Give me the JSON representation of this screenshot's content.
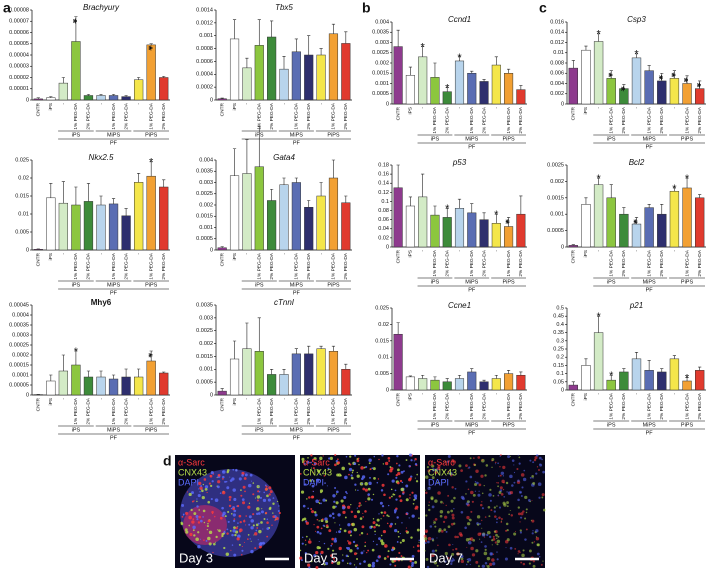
{
  "panels": [
    "a",
    "b",
    "c",
    "d"
  ],
  "micrographs": [
    {
      "stains": [
        "α-Sarc",
        "CNX43",
        "DAPI"
      ],
      "day": "Day 3"
    },
    {
      "stains": [
        "α-Sarc",
        "CNX43",
        "DAPI"
      ],
      "day": "Day 5"
    },
    {
      "stains": [
        "α-Sarc",
        "CNX43",
        "DAPI"
      ],
      "day": "Day 7"
    }
  ],
  "chart_data": [
    {
      "type": "bar",
      "title": "Brachyury",
      "categories": [
        "CNTR",
        "iPS",
        "-",
        "1% PEG-DA",
        "2% PEG-DA",
        "-",
        "1% PEG-DA",
        "2% PEG-DA",
        "-",
        "1% PEG-DA",
        "2% PEG-DA"
      ],
      "groups": [
        "iPS",
        "MiPS",
        "PiPS"
      ],
      "group_title": "PF",
      "values": [
        1e-06,
        2e-06,
        1.5e-05,
        5.2e-05,
        4e-06,
        4e-06,
        4e-06,
        3e-06,
        1.8e-05,
        4.9e-05,
        2e-05
      ],
      "errors": [
        1e-06,
        1e-06,
        5e-06,
        2.2e-05,
        1e-06,
        1e-06,
        1e-06,
        1e-06,
        2e-06,
        1e-06,
        1e-06
      ],
      "stars": [
        null,
        null,
        null,
        "**",
        null,
        null,
        null,
        null,
        null,
        "**",
        null
      ],
      "colors": [
        "#8e3a8e",
        "#ffffff",
        "#d3ebc6",
        "#8cc63f",
        "#3d8b3a",
        "#b8d4ec",
        "#5a6db3",
        "#2e2f6e",
        "#f4e64a",
        "#f2a033",
        "#e03a2e"
      ],
      "ylim": [
        0,
        8e-05
      ],
      "yticks": [
        0,
        1e-05,
        2e-05,
        3e-05,
        4e-05,
        5e-05,
        6e-05,
        7e-05,
        8e-05
      ]
    },
    {
      "type": "bar",
      "title": "Tbx5",
      "categories": [
        "CNTR",
        "iPS",
        "-",
        "1% PEG-DA",
        "2% PEG-DA",
        "-",
        "1% PEG-DA",
        "2% PEG-DA",
        "-",
        "1% PEG-DA",
        "2% PEG-DA"
      ],
      "groups": [
        "iPS",
        "MiPS",
        "PiPS"
      ],
      "group_title": "PF",
      "values": [
        2e-05,
        0.00095,
        0.0005,
        0.00085,
        0.00098,
        0.00048,
        0.00075,
        0.0007,
        0.0007,
        0.00103,
        0.00088
      ],
      "errors": [
        1e-05,
        0.0003,
        0.00015,
        0.0004,
        0.00025,
        0.0002,
        0.0002,
        0.0003,
        0.0001,
        0.00015,
        0.00018
      ],
      "stars": [
        null,
        null,
        null,
        null,
        null,
        null,
        null,
        null,
        null,
        null,
        null
      ],
      "colors": [
        "#8e3a8e",
        "#ffffff",
        "#d3ebc6",
        "#8cc63f",
        "#3d8b3a",
        "#b8d4ec",
        "#5a6db3",
        "#2e2f6e",
        "#f4e64a",
        "#f2a033",
        "#e03a2e"
      ],
      "ylim": [
        0,
        0.0014
      ],
      "yticks": [
        0,
        0.0002,
        0.0004,
        0.0006,
        0.0008,
        0.001,
        0.0012,
        0.0014
      ]
    },
    {
      "type": "bar",
      "title": "Nkx2.5",
      "categories": [
        "CNTR",
        "iPS",
        "-",
        "1% PEG-DA",
        "2% PEG-DA",
        "-",
        "1% PEG-DA",
        "2% PEG-DA",
        "-",
        "1% PEG-DA",
        "2% PEG-DA"
      ],
      "groups": [
        "iPS",
        "MiPS",
        "PiPS"
      ],
      "group_title": "PF",
      "values": [
        0.0002,
        0.0145,
        0.013,
        0.0125,
        0.0135,
        0.0125,
        0.0128,
        0.0095,
        0.0188,
        0.0205,
        0.0175
      ],
      "errors": [
        0.0001,
        0.004,
        0.006,
        0.005,
        0.005,
        0.0025,
        0.0015,
        0.002,
        0.0025,
        0.004,
        0.002
      ],
      "stars": [
        null,
        null,
        null,
        null,
        null,
        null,
        null,
        null,
        null,
        "*",
        null
      ],
      "colors": [
        "#8e3a8e",
        "#ffffff",
        "#d3ebc6",
        "#8cc63f",
        "#3d8b3a",
        "#b8d4ec",
        "#5a6db3",
        "#2e2f6e",
        "#f4e64a",
        "#f2a033",
        "#e03a2e"
      ],
      "ylim": [
        0,
        0.025
      ],
      "yticks": [
        0,
        0.005,
        0.01,
        0.015,
        0.02,
        0.025
      ]
    },
    {
      "type": "bar",
      "title": "Gata4",
      "categories": [
        "CNTR",
        "iPS",
        "-",
        "1% PEG-DA",
        "2% PEG-DA",
        "-",
        "1% PEG-DA",
        "2% PEG-DA",
        "-",
        "1% PEG-DA",
        "2% PEG-DA"
      ],
      "groups": [
        "iPS",
        "MiPS",
        "PiPS"
      ],
      "group_title": "PF",
      "values": [
        0.0001,
        0.0033,
        0.0034,
        0.0037,
        0.0022,
        0.0029,
        0.003,
        0.0019,
        0.0024,
        0.0032,
        0.0021
      ],
      "errors": [
        5e-05,
        0.0012,
        0.0015,
        0.0018,
        0.0005,
        0.0003,
        0.0002,
        0.0003,
        0.0006,
        0.0008,
        0.0003
      ],
      "stars": [
        null,
        null,
        null,
        null,
        null,
        null,
        null,
        null,
        null,
        null,
        null
      ],
      "colors": [
        "#8e3a8e",
        "#ffffff",
        "#d3ebc6",
        "#8cc63f",
        "#3d8b3a",
        "#b8d4ec",
        "#5a6db3",
        "#2e2f6e",
        "#f4e64a",
        "#f2a033",
        "#e03a2e"
      ],
      "ylim": [
        0,
        0.004
      ],
      "yticks": [
        0,
        0.0005,
        0.001,
        0.0015,
        0.002,
        0.0025,
        0.003,
        0.0035,
        0.004
      ]
    },
    {
      "type": "bar",
      "title": "Mhy6",
      "title_weight": "bold",
      "categories": [
        "CNTR",
        "iPS",
        "-",
        "1% PEG-DA",
        "2% PEG-DA",
        "-",
        "1% PEG-DA",
        "2% PEG-DA",
        "-",
        "1% PEG-DA",
        "2% PEG-DA"
      ],
      "groups": [
        "iPS",
        "MiPS",
        "PiPS"
      ],
      "group_title": "PF",
      "values": [
        2e-06,
        7e-05,
        0.00012,
        0.00015,
        9e-05,
        9e-05,
        8e-05,
        9e-05,
        9e-05,
        0.00017,
        0.00011
      ],
      "errors": [
        1e-06,
        3e-05,
        8e-05,
        7e-05,
        3e-05,
        3e-05,
        2e-05,
        4e-05,
        4e-05,
        5e-05,
        5e-06
      ],
      "stars": [
        null,
        null,
        null,
        "*",
        null,
        null,
        null,
        null,
        null,
        "**",
        null
      ],
      "colors": [
        "#8e3a8e",
        "#ffffff",
        "#d3ebc6",
        "#8cc63f",
        "#3d8b3a",
        "#b8d4ec",
        "#5a6db3",
        "#2e2f6e",
        "#f4e64a",
        "#f2a033",
        "#e03a2e"
      ],
      "ylim": [
        0,
        0.00045
      ],
      "yticks": [
        0,
        5e-05,
        0.0001,
        0.00015,
        0.0002,
        0.00025,
        0.0003,
        0.00035,
        0.0004,
        0.00045
      ]
    },
    {
      "type": "bar",
      "title": "cTnnI",
      "categories": [
        "CNTR",
        "iPS",
        "-",
        "1% PEG-DA",
        "2% PEG-DA",
        "-",
        "1% PEG-DA",
        "2% PEG-DA",
        "-",
        "1% PEG-DA",
        "2% PEG-DA"
      ],
      "groups": [
        "iPS",
        "MiPS",
        "PiPS"
      ],
      "group_title": "PF",
      "values": [
        0.00015,
        0.0014,
        0.0018,
        0.0017,
        0.0008,
        0.0008,
        0.0016,
        0.0016,
        0.0018,
        0.0017,
        0.001
      ],
      "errors": [
        0.0001,
        0.0007,
        0.001,
        0.0013,
        0.0002,
        0.0002,
        0.0002,
        0.0003,
        0.0001,
        0.0002,
        0.0002
      ],
      "stars": [
        null,
        null,
        null,
        null,
        null,
        null,
        null,
        null,
        null,
        null,
        null
      ],
      "colors": [
        "#8e3a8e",
        "#ffffff",
        "#d3ebc6",
        "#8cc63f",
        "#3d8b3a",
        "#b8d4ec",
        "#5a6db3",
        "#2e2f6e",
        "#f4e64a",
        "#f2a033",
        "#e03a2e"
      ],
      "ylim": [
        0,
        0.0035
      ],
      "yticks": [
        0,
        0.0005,
        0.001,
        0.0015,
        0.002,
        0.0025,
        0.003,
        0.0035
      ]
    },
    {
      "type": "bar",
      "title": "Ccnd1",
      "categories": [
        "CNTR",
        "iPS",
        "-",
        "1% PEG-DA",
        "2% PEG-DA",
        "-",
        "1% PEG-DA",
        "2% PEG-DA",
        "-",
        "1% PEG-DA",
        "2% PEG-DA"
      ],
      "groups": [
        "iPS",
        "MiPS",
        "PiPS"
      ],
      "group_title": "PF",
      "values": [
        0.0028,
        0.0014,
        0.0023,
        0.0013,
        0.0006,
        0.0021,
        0.0015,
        0.0011,
        0.0019,
        0.0015,
        0.0007
      ],
      "errors": [
        0.0008,
        0.0004,
        0.0005,
        0.0007,
        0.0002,
        0.0002,
        0.0001,
        0.0001,
        0.0004,
        0.0002,
        0.0002
      ],
      "stars": [
        null,
        null,
        "*",
        null,
        "*",
        "*",
        null,
        null,
        null,
        null,
        null
      ],
      "colors": [
        "#8e3a8e",
        "#ffffff",
        "#d3ebc6",
        "#8cc63f",
        "#3d8b3a",
        "#b8d4ec",
        "#5a6db3",
        "#2e2f6e",
        "#f4e64a",
        "#f2a033",
        "#e03a2e"
      ],
      "ylim": [
        0,
        0.004
      ],
      "yticks": [
        0,
        0.0005,
        0.001,
        0.0015,
        0.002,
        0.0025,
        0.003,
        0.0035,
        0.004
      ]
    },
    {
      "type": "bar",
      "title": "p53",
      "categories": [
        "CNTR",
        "iPS",
        "-",
        "1% PEG-DA",
        "2% PEG-DA",
        "-",
        "1% PEG-DA",
        "2% PEG-DA",
        "-",
        "1% PEG-DA",
        "2% PEG-DA"
      ],
      "groups": [
        "iPS",
        "MiPS",
        "PiPS"
      ],
      "group_title": "PF",
      "values": [
        0.13,
        0.09,
        0.11,
        0.07,
        0.065,
        0.085,
        0.075,
        0.06,
        0.052,
        0.045,
        0.072
      ],
      "errors": [
        0.05,
        0.02,
        0.05,
        0.02,
        0.02,
        0.02,
        0.02,
        0.015,
        0.02,
        0.02,
        0.04
      ],
      "stars": [
        null,
        null,
        null,
        null,
        "*",
        null,
        null,
        null,
        "*",
        "**",
        null
      ],
      "colors": [
        "#8e3a8e",
        "#ffffff",
        "#d3ebc6",
        "#8cc63f",
        "#3d8b3a",
        "#b8d4ec",
        "#5a6db3",
        "#2e2f6e",
        "#f4e64a",
        "#f2a033",
        "#e03a2e"
      ],
      "ylim": [
        0,
        0.18
      ],
      "yticks": [
        0,
        0.02,
        0.04,
        0.06,
        0.08,
        0.1,
        0.12,
        0.14,
        0.16,
        0.18
      ]
    },
    {
      "type": "bar",
      "title": "Ccne1",
      "categories": [
        "CNTR",
        "iPS",
        "-",
        "1% PEG-DA",
        "2% PEG-DA",
        "-",
        "1% PEG-DA",
        "2% PEG-DA",
        "-",
        "1% PEG-DA",
        "2% PEG-DA"
      ],
      "groups": [
        "iPS",
        "MiPS",
        "PiPS"
      ],
      "group_title": "PF",
      "values": [
        0.017,
        0.004,
        0.0035,
        0.003,
        0.0025,
        0.0035,
        0.0055,
        0.0025,
        0.0035,
        0.005,
        0.0045
      ],
      "errors": [
        0.0035,
        0.0003,
        0.001,
        0.001,
        0.001,
        0.001,
        0.001,
        0.0005,
        0.001,
        0.001,
        0.001
      ],
      "stars": [
        null,
        null,
        null,
        null,
        null,
        null,
        null,
        null,
        null,
        null,
        null
      ],
      "colors": [
        "#8e3a8e",
        "#ffffff",
        "#d3ebc6",
        "#8cc63f",
        "#3d8b3a",
        "#b8d4ec",
        "#5a6db3",
        "#2e2f6e",
        "#f4e64a",
        "#f2a033",
        "#e03a2e"
      ],
      "ylim": [
        0,
        0.025
      ],
      "yticks": [
        0,
        0.005,
        0.01,
        0.015,
        0.02,
        0.025
      ]
    },
    {
      "type": "bar",
      "title": "Csp3",
      "categories": [
        "CNTR",
        "iPS",
        "-",
        "1% PEG-DA",
        "2% PEG-DA",
        "-",
        "1% PEG-DA",
        "2% PEG-DA",
        "-",
        "1% PEG-DA",
        "2% PEG-DA"
      ],
      "groups": [
        "iPS",
        "MiPS",
        "PiPS"
      ],
      "group_title": "PF",
      "values": [
        0.007,
        0.0105,
        0.0122,
        0.005,
        0.003,
        0.009,
        0.0065,
        0.0045,
        0.005,
        0.004,
        0.003
      ],
      "errors": [
        0.0015,
        0.0008,
        0.0015,
        0.0015,
        0.0008,
        0.0008,
        0.001,
        0.0015,
        0.0015,
        0.0015,
        0.0015
      ],
      "stars": [
        null,
        null,
        "*",
        "**",
        "**",
        "*",
        null,
        "**",
        "**",
        "**",
        "**"
      ],
      "colors": [
        "#8e3a8e",
        "#ffffff",
        "#d3ebc6",
        "#8cc63f",
        "#3d8b3a",
        "#b8d4ec",
        "#5a6db3",
        "#2e2f6e",
        "#f4e64a",
        "#f2a033",
        "#e03a2e"
      ],
      "ylim": [
        0,
        0.016
      ],
      "yticks": [
        0,
        0.002,
        0.004,
        0.006,
        0.008,
        0.01,
        0.012,
        0.014,
        0.016
      ]
    },
    {
      "type": "bar",
      "title": "Bcl2",
      "categories": [
        "CNTR",
        "iPS",
        "-",
        "1% PEG-DA",
        "2% PEG-DA",
        "-",
        "1% PEG-DA",
        "2% PEG-DA",
        "-",
        "1% PEG-DA",
        "2% PEG-DA"
      ],
      "groups": [
        "iPS",
        "MiPS",
        "PiPS"
      ],
      "group_title": "PF",
      "values": [
        5e-05,
        0.0013,
        0.0019,
        0.0015,
        0.001,
        0.0007,
        0.0012,
        0.001,
        0.0017,
        0.0018,
        0.0015
      ],
      "errors": [
        2e-05,
        0.0002,
        0.0002,
        0.0004,
        0.0002,
        0.0002,
        0.0001,
        0.0003,
        0.0001,
        0.0003,
        0.0001
      ],
      "stars": [
        null,
        null,
        "*",
        null,
        null,
        "**",
        null,
        null,
        "*",
        "*",
        null
      ],
      "colors": [
        "#8e3a8e",
        "#ffffff",
        "#d3ebc6",
        "#8cc63f",
        "#3d8b3a",
        "#b8d4ec",
        "#5a6db3",
        "#2e2f6e",
        "#f4e64a",
        "#f2a033",
        "#e03a2e"
      ],
      "ylim": [
        0,
        0.0025
      ],
      "yticks": [
        0,
        0.0005,
        0.001,
        0.0015,
        0.002,
        0.0025
      ]
    },
    {
      "type": "bar",
      "title": "p21",
      "categories": [
        "CNTR",
        "iPS",
        "-",
        "1% PEG-DA",
        "2% PEG-DA",
        "-",
        "1% PEG-DA",
        "2% PEG-DA",
        "-",
        "1% PEG-DA",
        "2% PEG-DA"
      ],
      "groups": [
        "iPS",
        "MiPS",
        "PiPS"
      ],
      "group_title": "PF",
      "values": [
        0.03,
        0.15,
        0.35,
        0.06,
        0.11,
        0.19,
        0.12,
        0.11,
        0.19,
        0.055,
        0.12
      ],
      "errors": [
        0.02,
        0.04,
        0.1,
        0.03,
        0.02,
        0.04,
        0.06,
        0.02,
        0.02,
        0.02,
        0.02
      ],
      "stars": [
        null,
        null,
        "*",
        "*",
        null,
        null,
        null,
        null,
        null,
        "*",
        null
      ],
      "colors": [
        "#8e3a8e",
        "#ffffff",
        "#d3ebc6",
        "#8cc63f",
        "#3d8b3a",
        "#b8d4ec",
        "#5a6db3",
        "#2e2f6e",
        "#f4e64a",
        "#f2a033",
        "#e03a2e"
      ],
      "ylim": [
        0,
        0.5
      ],
      "yticks": [
        0,
        0.05,
        0.1,
        0.15,
        0.2,
        0.25,
        0.3,
        0.35,
        0.4,
        0.45,
        0.5
      ]
    }
  ]
}
